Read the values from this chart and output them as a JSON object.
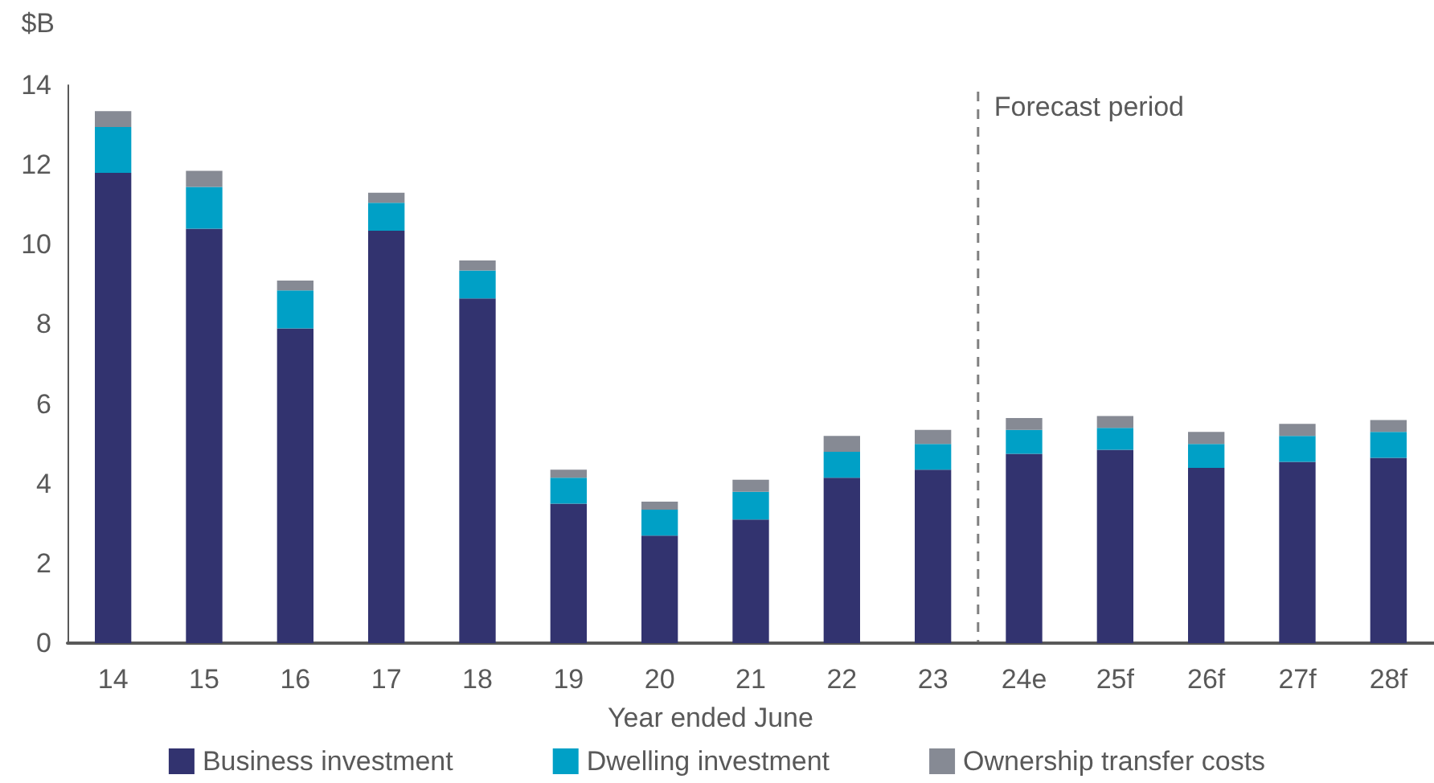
{
  "chart_data": {
    "type": "bar",
    "stacked": true,
    "ylabel": "$B",
    "xlabel": "Year ended June",
    "categories": [
      "14",
      "15",
      "16",
      "17",
      "18",
      "19",
      "20",
      "21",
      "22",
      "23",
      "24e",
      "25f",
      "26f",
      "27f",
      "28f"
    ],
    "series": [
      {
        "name": "Business investment",
        "color": "#32336f",
        "values": [
          11.8,
          10.4,
          7.9,
          10.35,
          8.65,
          3.5,
          2.7,
          3.1,
          4.15,
          4.35,
          4.75,
          4.85,
          4.4,
          4.55,
          4.65
        ]
      },
      {
        "name": "Dwelling investment",
        "color": "#00a0c6",
        "values": [
          1.15,
          1.05,
          0.95,
          0.7,
          0.7,
          0.65,
          0.65,
          0.7,
          0.65,
          0.65,
          0.6,
          0.55,
          0.6,
          0.65,
          0.65
        ]
      },
      {
        "name": "Ownership transfer costs",
        "color": "#868a94",
        "values": [
          0.4,
          0.4,
          0.25,
          0.25,
          0.25,
          0.2,
          0.2,
          0.3,
          0.4,
          0.35,
          0.3,
          0.3,
          0.3,
          0.3,
          0.3
        ]
      }
    ],
    "ylim": [
      0,
      14
    ],
    "yticks": [
      0,
      2,
      4,
      6,
      8,
      10,
      12,
      14
    ],
    "grid": false,
    "legend": "bottom",
    "annotations": [
      "Forecast period"
    ]
  }
}
